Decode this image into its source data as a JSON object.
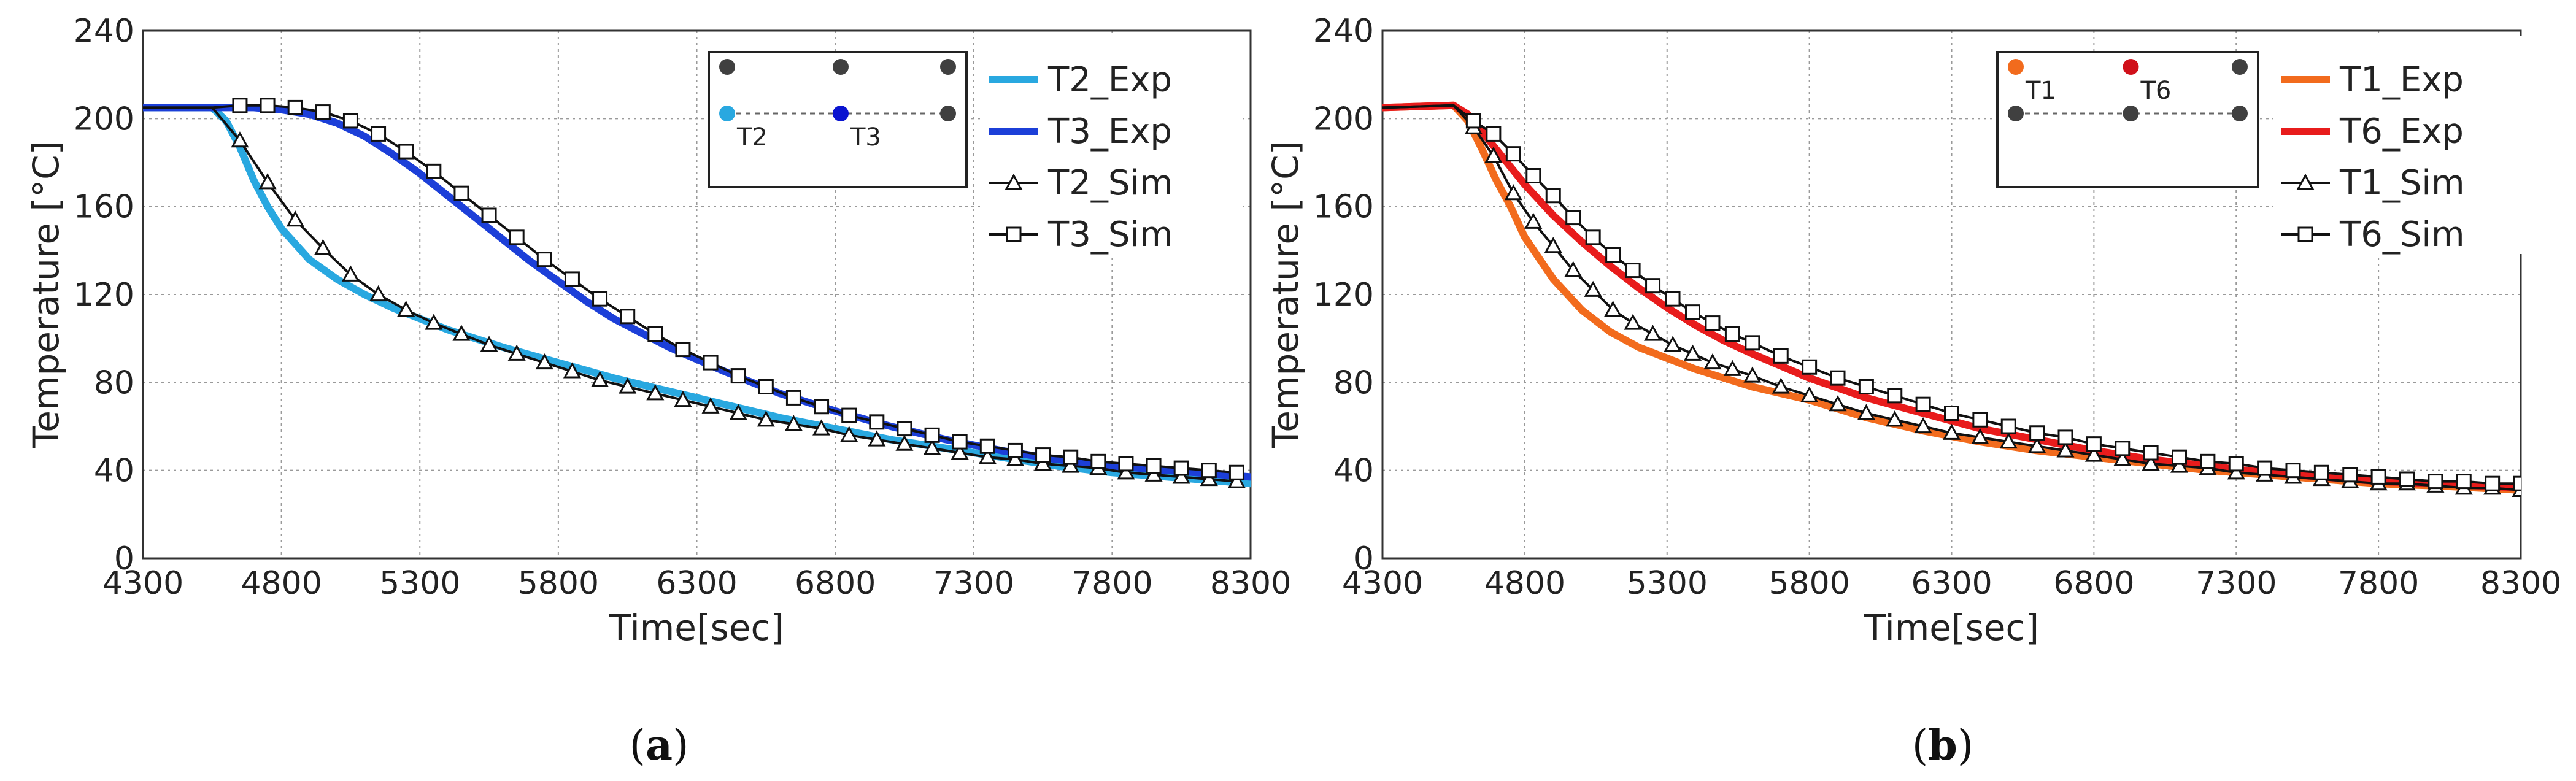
{
  "chart_data": [
    {
      "type": "line",
      "panel": "a",
      "caption": [
        "(",
        "a",
        ")"
      ],
      "xlabel": "Time[sec]",
      "ylabel": "Temperature [°C]",
      "xlim": [
        4300,
        8300
      ],
      "ylim": [
        0,
        240
      ],
      "xticks": [
        4300,
        4800,
        5300,
        5800,
        6300,
        6800,
        7300,
        7800,
        8300
      ],
      "yticks": [
        0,
        40,
        80,
        120,
        160,
        200,
        240
      ],
      "grid": true,
      "legend_position": "top-right",
      "inset": {
        "sensors": [
          {
            "label": "T2",
            "color": "#29A8E0",
            "row": "middle",
            "column": "left"
          },
          {
            "label": "T3",
            "color": "#0A14D0",
            "row": "middle",
            "column": "center"
          }
        ],
        "other_points_color": "#404040"
      },
      "series": [
        {
          "name": "T2_Exp",
          "style": "solid",
          "color": "#29A8E0",
          "x": [
            4300,
            4550,
            4600,
            4650,
            4700,
            4750,
            4800,
            4900,
            5000,
            5100,
            5200,
            5300,
            5400,
            5500,
            5600,
            5800,
            6000,
            6200,
            6400,
            6600,
            6800,
            7000,
            7200,
            7400,
            7600,
            7800,
            8000,
            8300
          ],
          "y": [
            205,
            205,
            199,
            187,
            172,
            160,
            150,
            136,
            127,
            120,
            114,
            109,
            104,
            100,
            96,
            89,
            82,
            76,
            70,
            64,
            59,
            54,
            50,
            46,
            42,
            39,
            37,
            34
          ]
        },
        {
          "name": "T3_Exp",
          "style": "solid",
          "color": "#1C3FD8",
          "x": [
            4300,
            4550,
            4600,
            4700,
            4800,
            4900,
            5000,
            5100,
            5200,
            5300,
            5400,
            5500,
            5600,
            5700,
            5800,
            5900,
            6000,
            6200,
            6400,
            6600,
            6800,
            7000,
            7200,
            7400,
            7600,
            7800,
            8000,
            8300
          ],
          "y": [
            205,
            205,
            205,
            205,
            204,
            202,
            198,
            192,
            184,
            175,
            165,
            155,
            145,
            135,
            126,
            117,
            109,
            96,
            85,
            75,
            67,
            60,
            54,
            49,
            45,
            42,
            40,
            37
          ]
        },
        {
          "name": "T2_Sim",
          "style": "line-triangle-markers",
          "color": "#111111",
          "x": [
            4300,
            4550,
            4650,
            4750,
            4850,
            4950,
            5050,
            5150,
            5250,
            5350,
            5450,
            5550,
            5650,
            5750,
            5850,
            5950,
            6050,
            6150,
            6250,
            6350,
            6450,
            6550,
            6650,
            6750,
            6850,
            6950,
            7050,
            7150,
            7250,
            7350,
            7450,
            7550,
            7650,
            7750,
            7850,
            7950,
            8050,
            8150,
            8250
          ],
          "y": [
            205,
            205,
            190,
            171,
            154,
            141,
            129,
            120,
            113,
            107,
            102,
            97,
            93,
            89,
            85,
            81,
            78,
            75,
            72,
            69,
            66,
            63,
            61,
            59,
            56,
            54,
            52,
            50,
            48,
            46,
            45,
            43,
            42,
            41,
            39,
            38,
            37,
            36,
            35
          ]
        },
        {
          "name": "T3_Sim",
          "style": "line-square-markers",
          "color": "#111111",
          "x": [
            4300,
            4550,
            4650,
            4750,
            4850,
            4950,
            5050,
            5150,
            5250,
            5350,
            5450,
            5550,
            5650,
            5750,
            5850,
            5950,
            6050,
            6150,
            6250,
            6350,
            6450,
            6550,
            6650,
            6750,
            6850,
            6950,
            7050,
            7150,
            7250,
            7350,
            7450,
            7550,
            7650,
            7750,
            7850,
            7950,
            8050,
            8150,
            8250
          ],
          "y": [
            205,
            205,
            206,
            206,
            205,
            203,
            199,
            193,
            185,
            176,
            166,
            156,
            146,
            136,
            127,
            118,
            110,
            102,
            95,
            89,
            83,
            78,
            73,
            69,
            65,
            62,
            59,
            56,
            53,
            51,
            49,
            47,
            46,
            44,
            43,
            42,
            41,
            40,
            39
          ]
        }
      ]
    },
    {
      "type": "line",
      "panel": "b",
      "caption": [
        "(",
        "b",
        ")"
      ],
      "xlabel": "Time[sec]",
      "ylabel": "Temperature [°C]",
      "xlim": [
        4300,
        8300
      ],
      "ylim": [
        0,
        240
      ],
      "xticks": [
        4300,
        4800,
        5300,
        5800,
        6300,
        6800,
        7300,
        7800,
        8300
      ],
      "yticks": [
        0,
        40,
        80,
        120,
        160,
        200,
        240
      ],
      "grid": true,
      "legend_position": "top-right",
      "inset": {
        "sensors": [
          {
            "label": "T1",
            "color": "#F26B1D",
            "row": "top",
            "column": "left"
          },
          {
            "label": "T6",
            "color": "#D0101A",
            "row": "top",
            "column": "center"
          }
        ],
        "other_points_color": "#404040"
      },
      "series": [
        {
          "name": "T1_Exp",
          "style": "solid",
          "color": "#F26B1D",
          "x": [
            4300,
            4550,
            4600,
            4650,
            4700,
            4750,
            4800,
            4900,
            5000,
            5100,
            5200,
            5300,
            5400,
            5500,
            5600,
            5800,
            6000,
            6200,
            6400,
            6600,
            6800,
            7000,
            7200,
            7400,
            7600,
            7800,
            8000,
            8300
          ],
          "y": [
            205,
            206,
            199,
            186,
            172,
            160,
            146,
            127,
            113,
            103,
            96,
            91,
            86,
            82,
            78,
            72,
            64,
            58,
            53,
            49,
            46,
            43,
            40,
            38,
            36,
            34,
            33,
            31
          ]
        },
        {
          "name": "T6_Exp",
          "style": "solid",
          "color": "#E81C1C",
          "x": [
            4300,
            4550,
            4600,
            4650,
            4700,
            4750,
            4800,
            4900,
            5000,
            5100,
            5200,
            5300,
            5400,
            5500,
            5600,
            5800,
            6000,
            6200,
            6400,
            6600,
            6800,
            7000,
            7200,
            7400,
            7600,
            7800,
            8000,
            8300
          ],
          "y": [
            205,
            206,
            202,
            194,
            186,
            178,
            170,
            156,
            144,
            133,
            123,
            114,
            106,
            99,
            93,
            82,
            73,
            66,
            59,
            54,
            49,
            45,
            42,
            39,
            37,
            35,
            34,
            32
          ]
        },
        {
          "name": "T1_Sim",
          "style": "line-triangle-markers",
          "color": "#111111",
          "x": [
            4300,
            4550,
            4620,
            4690,
            4760,
            4830,
            4900,
            4970,
            5040,
            5110,
            5180,
            5250,
            5320,
            5390,
            5460,
            5530,
            5600,
            5700,
            5800,
            5900,
            6000,
            6100,
            6200,
            6300,
            6400,
            6500,
            6600,
            6700,
            6800,
            6900,
            7000,
            7100,
            7200,
            7300,
            7400,
            7500,
            7600,
            7700,
            7800,
            7900,
            8000,
            8100,
            8200,
            8300
          ],
          "y": [
            205,
            206,
            196,
            183,
            166,
            153,
            142,
            131,
            122,
            113,
            107,
            102,
            97,
            93,
            89,
            86,
            83,
            78,
            74,
            70,
            66,
            63,
            60,
            57,
            55,
            53,
            51,
            49,
            47,
            45,
            43,
            42,
            41,
            39,
            38,
            37,
            36,
            35,
            34,
            34,
            33,
            32,
            32,
            31
          ]
        },
        {
          "name": "T6_Sim",
          "style": "line-square-markers",
          "color": "#111111",
          "x": [
            4300,
            4550,
            4620,
            4690,
            4760,
            4830,
            4900,
            4970,
            5040,
            5110,
            5180,
            5250,
            5320,
            5390,
            5460,
            5530,
            5600,
            5700,
            5800,
            5900,
            6000,
            6100,
            6200,
            6300,
            6400,
            6500,
            6600,
            6700,
            6800,
            6900,
            7000,
            7100,
            7200,
            7300,
            7400,
            7500,
            7600,
            7700,
            7800,
            7900,
            8000,
            8100,
            8200,
            8300
          ],
          "y": [
            205,
            206,
            199,
            193,
            184,
            174,
            165,
            155,
            146,
            138,
            131,
            124,
            118,
            112,
            107,
            102,
            98,
            92,
            87,
            82,
            78,
            74,
            70,
            66,
            63,
            60,
            57,
            55,
            52,
            50,
            48,
            46,
            44,
            43,
            41,
            40,
            39,
            38,
            37,
            36,
            35,
            35,
            34,
            34
          ]
        }
      ]
    }
  ]
}
